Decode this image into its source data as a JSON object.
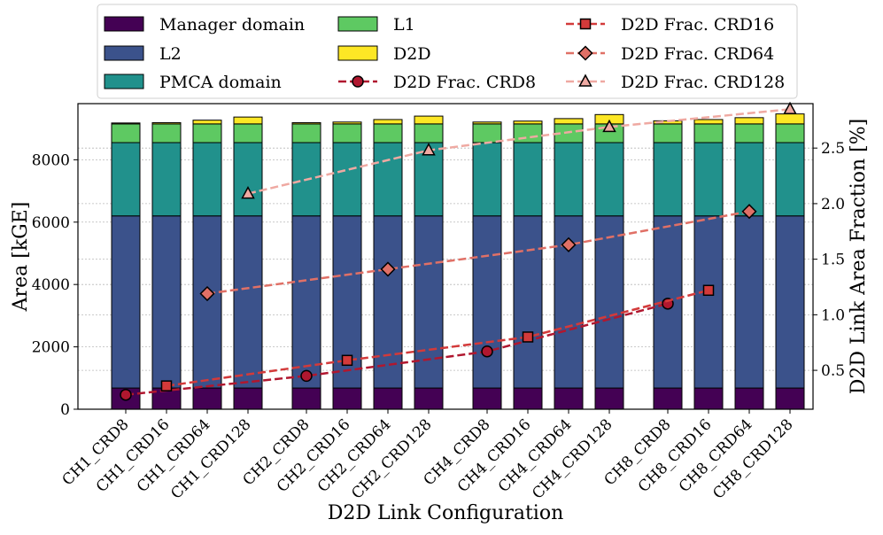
{
  "chart_data": {
    "type": "bar",
    "title": "",
    "xlabel": "D2D Link Configuration",
    "ylabel": "Area [kGE]",
    "y2label": "D2D Link Area Fraction [%]",
    "ylim": [
      0,
      9800
    ],
    "y2lim": [
      0.15,
      2.9
    ],
    "yticks": [
      0,
      2000,
      4000,
      6000,
      8000
    ],
    "y2ticks": [
      0.5,
      1.0,
      1.5,
      2.0,
      2.5
    ],
    "y2tick_labels": [
      "0.5",
      "1.0",
      "1.5",
      "2.0",
      "2.5"
    ],
    "grid": true,
    "legend_position": "top",
    "categories": [
      "CH1_CRD8",
      "CH1_CRD16",
      "CH1_CRD64",
      "CH1_CRD128",
      "CH2_CRD8",
      "CH2_CRD16",
      "CH2_CRD64",
      "CH2_CRD128",
      "CH4_CRD8",
      "CH4_CRD16",
      "CH4_CRD64",
      "CH4_CRD128",
      "CH8_CRD8",
      "CH8_CRD16",
      "CH8_CRD64",
      "CH8_CRD128"
    ],
    "highlight_category": "CH8_CRD128",
    "highlight_color": "#1a8a3a",
    "stacked_series": [
      {
        "name": "Manager domain",
        "color": "#440154",
        "values": [
          680,
          680,
          680,
          680,
          680,
          680,
          680,
          680,
          680,
          680,
          680,
          680,
          680,
          680,
          680,
          680
        ]
      },
      {
        "name": "L2",
        "color": "#3b528b",
        "values": [
          5520,
          5520,
          5520,
          5520,
          5520,
          5520,
          5520,
          5520,
          5520,
          5520,
          5520,
          5520,
          5520,
          5520,
          5520,
          5520
        ]
      },
      {
        "name": "PMCA domain",
        "color": "#21918c",
        "values": [
          2350,
          2350,
          2350,
          2350,
          2350,
          2350,
          2350,
          2350,
          2350,
          2350,
          2350,
          2350,
          2350,
          2350,
          2350,
          2350
        ]
      },
      {
        "name": "L1",
        "color": "#5ec962",
        "values": [
          600,
          600,
          600,
          600,
          600,
          600,
          600,
          600,
          600,
          600,
          600,
          600,
          600,
          600,
          600,
          600
        ]
      },
      {
        "name": "D2D",
        "color": "#fde725",
        "values": [
          30,
          40,
          120,
          220,
          40,
          60,
          140,
          250,
          60,
          90,
          170,
          300,
          100,
          140,
          200,
          320
        ]
      }
    ],
    "line_series": [
      {
        "name": "D2D Frac. CRD8",
        "color": "#b0172f",
        "marker": "circle",
        "x": [
          "CH1_CRD8",
          "CH2_CRD8",
          "CH4_CRD8",
          "CH8_CRD8"
        ],
        "values": [
          0.28,
          0.45,
          0.67,
          1.1
        ]
      },
      {
        "name": "D2D Frac. CRD16",
        "color": "#d33a3a",
        "marker": "square",
        "x": [
          "CH1_CRD16",
          "CH2_CRD16",
          "CH4_CRD16",
          "CH8_CRD16"
        ],
        "values": [
          0.36,
          0.59,
          0.8,
          1.22
        ]
      },
      {
        "name": "D2D Frac. CRD64",
        "color": "#e07066",
        "marker": "diamond",
        "x": [
          "CH1_CRD64",
          "CH2_CRD64",
          "CH4_CRD64",
          "CH8_CRD64"
        ],
        "values": [
          1.19,
          1.41,
          1.63,
          1.93
        ]
      },
      {
        "name": "D2D Frac. CRD128",
        "color": "#efa9a2",
        "marker": "triangle",
        "x": [
          "CH1_CRD128",
          "CH2_CRD128",
          "CH4_CRD128",
          "CH8_CRD128"
        ],
        "values": [
          2.09,
          2.48,
          2.69,
          2.85
        ]
      }
    ]
  }
}
